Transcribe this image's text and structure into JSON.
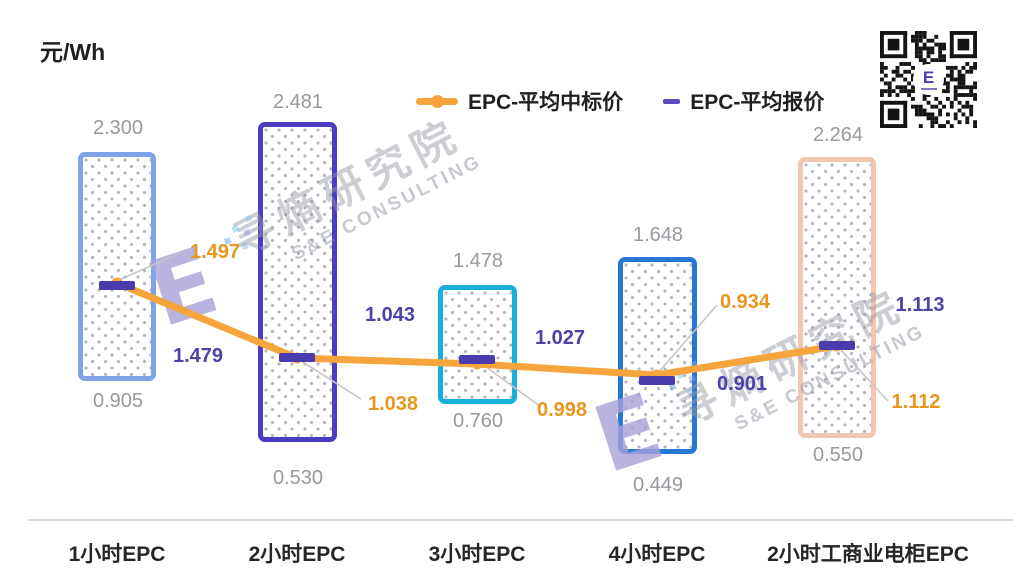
{
  "unit_label": "元/Wh",
  "legend": {
    "items": [
      {
        "label": "EPC-平均中标价",
        "color": "#F5A53C",
        "marker": "line-with-dot"
      },
      {
        "label": "EPC-平均报价",
        "color": "#4A3BAE",
        "marker": "dash"
      }
    ]
  },
  "watermark": {
    "cn": "寻熵研究院",
    "en": "S&E CONSULTING",
    "logo_letter": "E"
  },
  "qr": {
    "center_letter": "E"
  },
  "columns": [
    {
      "category": "1小时EPC",
      "max": "2.300",
      "min": "0.905",
      "avg_bid": "1.497",
      "avg_quote": "1.479",
      "bar_color": "#7FA3E8"
    },
    {
      "category": "2小时EPC",
      "max": "2.481",
      "min": "0.530",
      "avg_bid": "1.038",
      "avg_quote": "1.043",
      "bar_color": "#4B3CC4"
    },
    {
      "category": "3小时EPC",
      "max": "1.478",
      "min": "0.760",
      "avg_bid": "0.998",
      "avg_quote": "1.027",
      "bar_color": "#17B0DC"
    },
    {
      "category": "4小时EPC",
      "max": "1.648",
      "min": "0.449",
      "avg_bid": "0.934",
      "avg_quote": "0.901",
      "bar_color": "#2778D4"
    },
    {
      "category": "2小时工商业电柜EPC",
      "max": "2.264",
      "min": "0.550",
      "avg_bid": "1.112",
      "avg_quote": "1.113",
      "bar_color": "#F2C7B2"
    }
  ],
  "chart_data": {
    "type": "bar",
    "subtype": "floating-range-bars-with-average-line-and-dash-markers",
    "title": "",
    "xlabel": "",
    "ylabel": "元/Wh",
    "ylim": [
      0,
      2.5
    ],
    "grid": false,
    "legend_position": "top",
    "categories": [
      "1小时EPC",
      "2小时EPC",
      "3小时EPC",
      "4小时EPC",
      "2小时工商业电柜EPC"
    ],
    "range_min": [
      0.905,
      0.53,
      0.76,
      0.449,
      0.55
    ],
    "range_max": [
      2.3,
      2.481,
      1.478,
      1.648,
      2.264
    ],
    "series": [
      {
        "name": "EPC-平均中标价",
        "type": "line",
        "color": "#F5A53C",
        "values": [
          1.497,
          1.038,
          0.998,
          0.934,
          1.112
        ]
      },
      {
        "name": "EPC-平均报价",
        "type": "dash-marker",
        "color": "#4A3BAE",
        "values": [
          1.479,
          1.043,
          1.027,
          0.901,
          1.113
        ]
      }
    ],
    "bar_border_colors": [
      "#7FA3E8",
      "#4B3CC4",
      "#17B0DC",
      "#2778D4",
      "#F2C7B2"
    ]
  }
}
